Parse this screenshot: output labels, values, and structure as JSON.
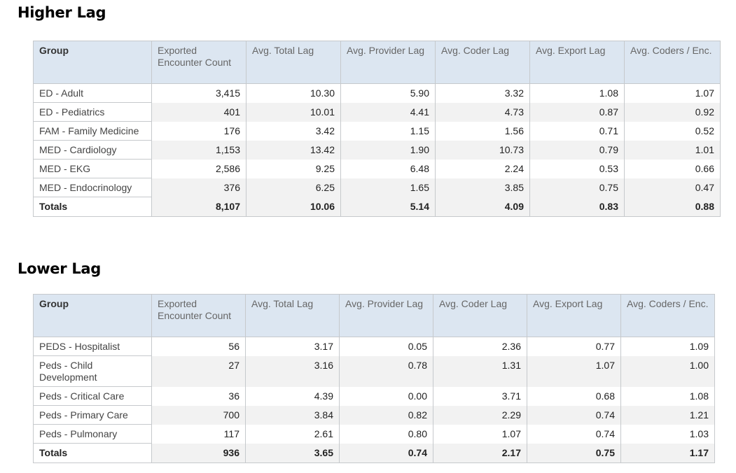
{
  "sections": [
    {
      "title": "Higher Lag",
      "headers": [
        "Group",
        "Exported Encounter Count",
        "Avg. Total Lag",
        "Avg. Provider Lag",
        "Avg. Coder Lag",
        "Avg. Export Lag",
        "Avg. Coders / Enc."
      ],
      "rows": [
        [
          "ED - Adult",
          "3,415",
          "10.30",
          "5.90",
          "3.32",
          "1.08",
          "1.07"
        ],
        [
          "ED - Pediatrics",
          "401",
          "10.01",
          "4.41",
          "4.73",
          "0.87",
          "0.92"
        ],
        [
          "FAM - Family Medicine",
          "176",
          "3.42",
          "1.15",
          "1.56",
          "0.71",
          "0.52"
        ],
        [
          "MED - Cardiology",
          "1,153",
          "13.42",
          "1.90",
          "10.73",
          "0.79",
          "1.01"
        ],
        [
          "MED - EKG",
          "2,586",
          "9.25",
          "6.48",
          "2.24",
          "0.53",
          "0.66"
        ],
        [
          "MED - Endocrinology",
          "376",
          "6.25",
          "1.65",
          "3.85",
          "0.75",
          "0.47"
        ]
      ],
      "totals": [
        "Totals",
        "8,107",
        "10.06",
        "5.14",
        "4.09",
        "0.83",
        "0.88"
      ]
    },
    {
      "title": "Lower Lag",
      "headers": [
        "Group",
        "Exported Encounter Count",
        "Avg. Total Lag",
        "Avg. Provider Lag",
        "Avg. Coder Lag",
        "Avg. Export Lag",
        "Avg. Coders / Enc."
      ],
      "rows": [
        [
          "PEDS - Hospitalist",
          "56",
          "3.17",
          "0.05",
          "2.36",
          "0.77",
          "1.09"
        ],
        [
          "Peds - Child Development",
          "27",
          "3.16",
          "0.78",
          "1.31",
          "1.07",
          "1.00"
        ],
        [
          "Peds - Critical Care",
          "36",
          "4.39",
          "0.00",
          "3.71",
          "0.68",
          "1.08"
        ],
        [
          "Peds - Primary Care",
          "700",
          "3.84",
          "0.82",
          "2.29",
          "0.74",
          "1.21"
        ],
        [
          "Peds - Pulmonary",
          "117",
          "2.61",
          "0.80",
          "1.07",
          "0.74",
          "1.03"
        ]
      ],
      "totals": [
        "Totals",
        "936",
        "3.65",
        "0.74",
        "2.17",
        "0.75",
        "1.17"
      ]
    }
  ],
  "colors": {
    "header_bg": "#dce6f1",
    "stripe_bg": "#f2f2f2",
    "border": "#c6c9cc"
  }
}
